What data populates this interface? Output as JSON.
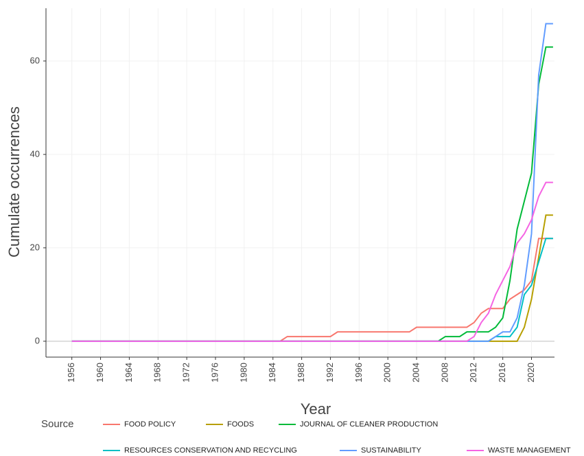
{
  "chart_data": {
    "type": "line",
    "xlabel": "Year",
    "ylabel": "Cumulate occurrences",
    "legend_title": "Source",
    "x": [
      1956,
      1957,
      1958,
      1959,
      1960,
      1961,
      1962,
      1963,
      1964,
      1965,
      1966,
      1967,
      1968,
      1969,
      1970,
      1971,
      1972,
      1973,
      1974,
      1975,
      1976,
      1977,
      1978,
      1979,
      1980,
      1981,
      1982,
      1983,
      1984,
      1985,
      1986,
      1987,
      1988,
      1989,
      1990,
      1991,
      1992,
      1993,
      1994,
      1995,
      1996,
      1997,
      1998,
      1999,
      2000,
      2001,
      2002,
      2003,
      2004,
      2005,
      2006,
      2007,
      2008,
      2009,
      2010,
      2011,
      2012,
      2013,
      2014,
      2015,
      2016,
      2017,
      2018,
      2019,
      2020,
      2021,
      2022,
      2023
    ],
    "xlim": [
      1952.4,
      2023.2
    ],
    "xticks": [
      1956,
      1960,
      1964,
      1968,
      1972,
      1976,
      1980,
      1984,
      1988,
      1992,
      1996,
      2000,
      2004,
      2008,
      2012,
      2016,
      2020
    ],
    "ylim": [
      -3.4,
      71.3
    ],
    "yticks": [
      0,
      20,
      40,
      60
    ],
    "grid": true,
    "series": [
      {
        "name": "FOOD POLICY",
        "color": "#F8766D",
        "values": [
          0,
          0,
          0,
          0,
          0,
          0,
          0,
          0,
          0,
          0,
          0,
          0,
          0,
          0,
          0,
          0,
          0,
          0,
          0,
          0,
          0,
          0,
          0,
          0,
          0,
          0,
          0,
          0,
          0,
          0,
          1,
          1,
          1,
          1,
          1,
          1,
          1,
          2,
          2,
          2,
          2,
          2,
          2,
          2,
          2,
          2,
          2,
          2,
          3,
          3,
          3,
          3,
          3,
          3,
          3,
          3,
          4,
          6,
          7,
          7,
          7,
          9,
          10,
          11,
          13,
          22,
          22,
          22
        ]
      },
      {
        "name": "FOODS",
        "color": "#B79F00",
        "values": [
          0,
          0,
          0,
          0,
          0,
          0,
          0,
          0,
          0,
          0,
          0,
          0,
          0,
          0,
          0,
          0,
          0,
          0,
          0,
          0,
          0,
          0,
          0,
          0,
          0,
          0,
          0,
          0,
          0,
          0,
          0,
          0,
          0,
          0,
          0,
          0,
          0,
          0,
          0,
          0,
          0,
          0,
          0,
          0,
          0,
          0,
          0,
          0,
          0,
          0,
          0,
          0,
          0,
          0,
          0,
          0,
          0,
          0,
          0,
          0,
          0,
          0,
          0,
          3,
          9,
          18,
          27,
          27
        ]
      },
      {
        "name": "JOURNAL OF CLEANER PRODUCTION",
        "color": "#00BA38",
        "values": [
          0,
          0,
          0,
          0,
          0,
          0,
          0,
          0,
          0,
          0,
          0,
          0,
          0,
          0,
          0,
          0,
          0,
          0,
          0,
          0,
          0,
          0,
          0,
          0,
          0,
          0,
          0,
          0,
          0,
          0,
          0,
          0,
          0,
          0,
          0,
          0,
          0,
          0,
          0,
          0,
          0,
          0,
          0,
          0,
          0,
          0,
          0,
          0,
          0,
          0,
          0,
          0,
          1,
          1,
          1,
          2,
          2,
          2,
          2,
          3,
          5,
          13,
          24,
          30,
          36,
          55,
          63,
          63
        ]
      },
      {
        "name": "RESOURCES CONSERVATION AND RECYCLING",
        "color": "#00BFC4",
        "values": [
          0,
          0,
          0,
          0,
          0,
          0,
          0,
          0,
          0,
          0,
          0,
          0,
          0,
          0,
          0,
          0,
          0,
          0,
          0,
          0,
          0,
          0,
          0,
          0,
          0,
          0,
          0,
          0,
          0,
          0,
          0,
          0,
          0,
          0,
          0,
          0,
          0,
          0,
          0,
          0,
          0,
          0,
          0,
          0,
          0,
          0,
          0,
          0,
          0,
          0,
          0,
          0,
          0,
          0,
          0,
          0,
          0,
          0,
          0,
          1,
          1,
          1,
          3,
          10,
          12,
          17,
          22,
          22
        ]
      },
      {
        "name": "SUSTAINABILITY",
        "color": "#619CFF",
        "values": [
          0,
          0,
          0,
          0,
          0,
          0,
          0,
          0,
          0,
          0,
          0,
          0,
          0,
          0,
          0,
          0,
          0,
          0,
          0,
          0,
          0,
          0,
          0,
          0,
          0,
          0,
          0,
          0,
          0,
          0,
          0,
          0,
          0,
          0,
          0,
          0,
          0,
          0,
          0,
          0,
          0,
          0,
          0,
          0,
          0,
          0,
          0,
          0,
          0,
          0,
          0,
          0,
          0,
          0,
          0,
          0,
          0,
          0,
          0,
          1,
          2,
          2,
          5,
          12,
          23,
          57,
          68,
          68
        ]
      },
      {
        "name": "WASTE MANAGEMENT",
        "color": "#F564E3",
        "values": [
          0,
          0,
          0,
          0,
          0,
          0,
          0,
          0,
          0,
          0,
          0,
          0,
          0,
          0,
          0,
          0,
          0,
          0,
          0,
          0,
          0,
          0,
          0,
          0,
          0,
          0,
          0,
          0,
          0,
          0,
          0,
          0,
          0,
          0,
          0,
          0,
          0,
          0,
          0,
          0,
          0,
          0,
          0,
          0,
          0,
          0,
          0,
          0,
          0,
          0,
          0,
          0,
          0,
          0,
          0,
          0,
          1,
          4,
          6,
          10,
          13,
          16,
          21,
          23,
          26,
          31,
          34,
          34
        ]
      }
    ]
  }
}
